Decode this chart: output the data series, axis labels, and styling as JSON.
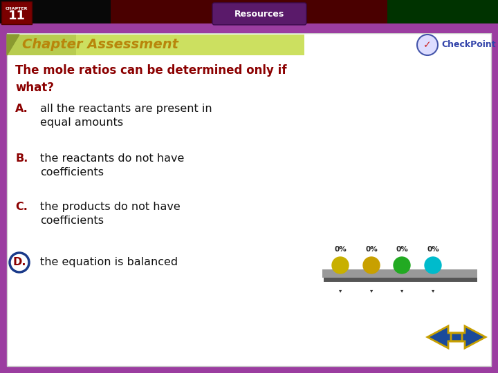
{
  "bg_outer": "#9B3DA0",
  "bg_inner": "#FFFFFF",
  "header_text": "Chapter Assessment",
  "header_text_color": "#B8860B",
  "resources_text": "Resources",
  "chapter_label": "CHAPTER",
  "chapter_num": "11",
  "question": "The mole ratios can be determined only if\nwhat?",
  "question_color": "#8B0000",
  "answers": [
    {
      "label": "A.",
      "text": "all the reactants are present in\nequal amounts",
      "circled": false
    },
    {
      "label": "B.",
      "text": "the reactants do not have\ncoefficients",
      "circled": false
    },
    {
      "label": "C.",
      "text": "the products do not have\ncoefficients",
      "circled": false
    },
    {
      "label": "D.",
      "text": "the equation is balanced",
      "circled": true
    }
  ],
  "label_color": "#8B0000",
  "answer_color": "#111111",
  "poll_colors": [
    "#C8B000",
    "#C8A000",
    "#22AA22",
    "#00BBCC"
  ],
  "poll_pcts": [
    "0%",
    "0%",
    "0%",
    "0%"
  ],
  "arrow_fill": "#1a4a9a",
  "arrow_outline": "#C8A000"
}
